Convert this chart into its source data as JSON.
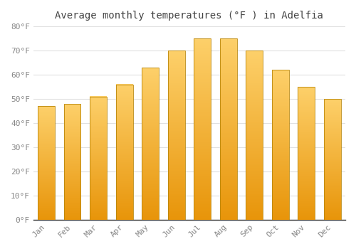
{
  "title": "Average monthly temperatures (°F ) in Adelfia",
  "months": [
    "Jan",
    "Feb",
    "Mar",
    "Apr",
    "May",
    "Jun",
    "Jul",
    "Aug",
    "Sep",
    "Oct",
    "Nov",
    "Dec"
  ],
  "values": [
    47,
    48,
    51,
    56,
    63,
    70,
    75,
    75,
    70,
    62,
    55,
    50
  ],
  "bar_color_main": "#F5A623",
  "bar_color_light": "#FDD06A",
  "bar_color_dark": "#E8950A",
  "bar_edge_color": "#B8860B",
  "ylim": [
    0,
    80
  ],
  "yticks": [
    0,
    10,
    20,
    30,
    40,
    50,
    60,
    70,
    80
  ],
  "ytick_labels": [
    "0°F",
    "10°F",
    "20°F",
    "30°F",
    "40°F",
    "50°F",
    "60°F",
    "70°F",
    "80°F"
  ],
  "background_color": "#ffffff",
  "grid_color": "#e0e0e0",
  "title_fontsize": 10,
  "tick_fontsize": 8,
  "bar_width": 0.65
}
